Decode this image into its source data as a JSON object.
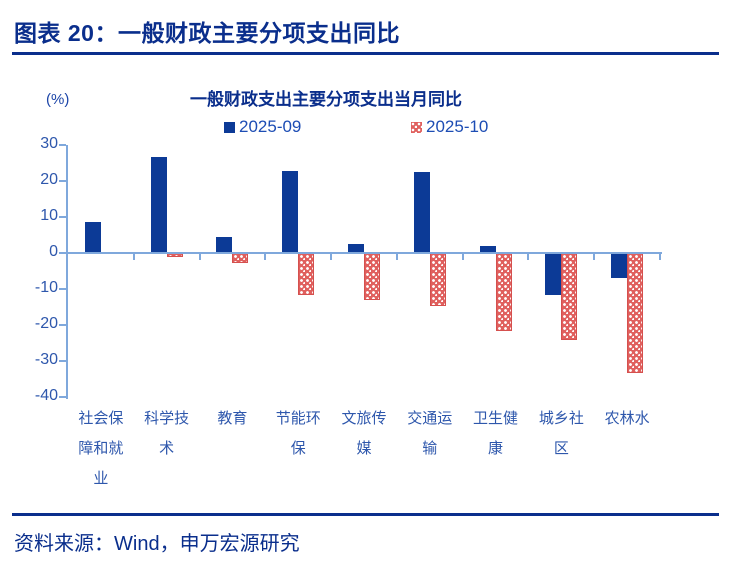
{
  "header": {
    "title": "图表 20：一般财政主要分项支出同比"
  },
  "footer": {
    "source": "资料来源：Wind，申万宏源研究"
  },
  "chart_data": {
    "type": "bar",
    "title": "一般财政支出主要分项支出当月同比",
    "unit_label": "(%)",
    "categories": [
      "社会保障和就业",
      "科学技术",
      "教育",
      "节能环保",
      "文旅传媒",
      "交通运输",
      "卫生健康",
      "城乡社区",
      "农林水"
    ],
    "series": [
      {
        "name": "2025-09",
        "style": "solid",
        "color": "#0c3a96",
        "values": [
          8.7,
          26.8,
          4.4,
          22.8,
          2.4,
          22.4,
          2.0,
          -11.7,
          -6.9
        ]
      },
      {
        "name": "2025-10",
        "style": "dotted-pattern",
        "color": "#e0605e",
        "values": [
          0,
          -1.2,
          -2.7,
          -11.6,
          -13.0,
          -14.8,
          -21.6,
          -24.3,
          -33.3
        ]
      }
    ],
    "ylim": [
      -40,
      30
    ],
    "yticks": [
      30,
      20,
      10,
      0,
      -10,
      -20,
      -30,
      -40
    ],
    "grid": false,
    "legend_position": "top",
    "colors": {
      "axis_line": "#7fa8dc",
      "tick_text": "#2e57ac",
      "title_text": "#0a2e8c",
      "legend_text": "#1d4db4",
      "rule": "#0a2e8c"
    }
  }
}
